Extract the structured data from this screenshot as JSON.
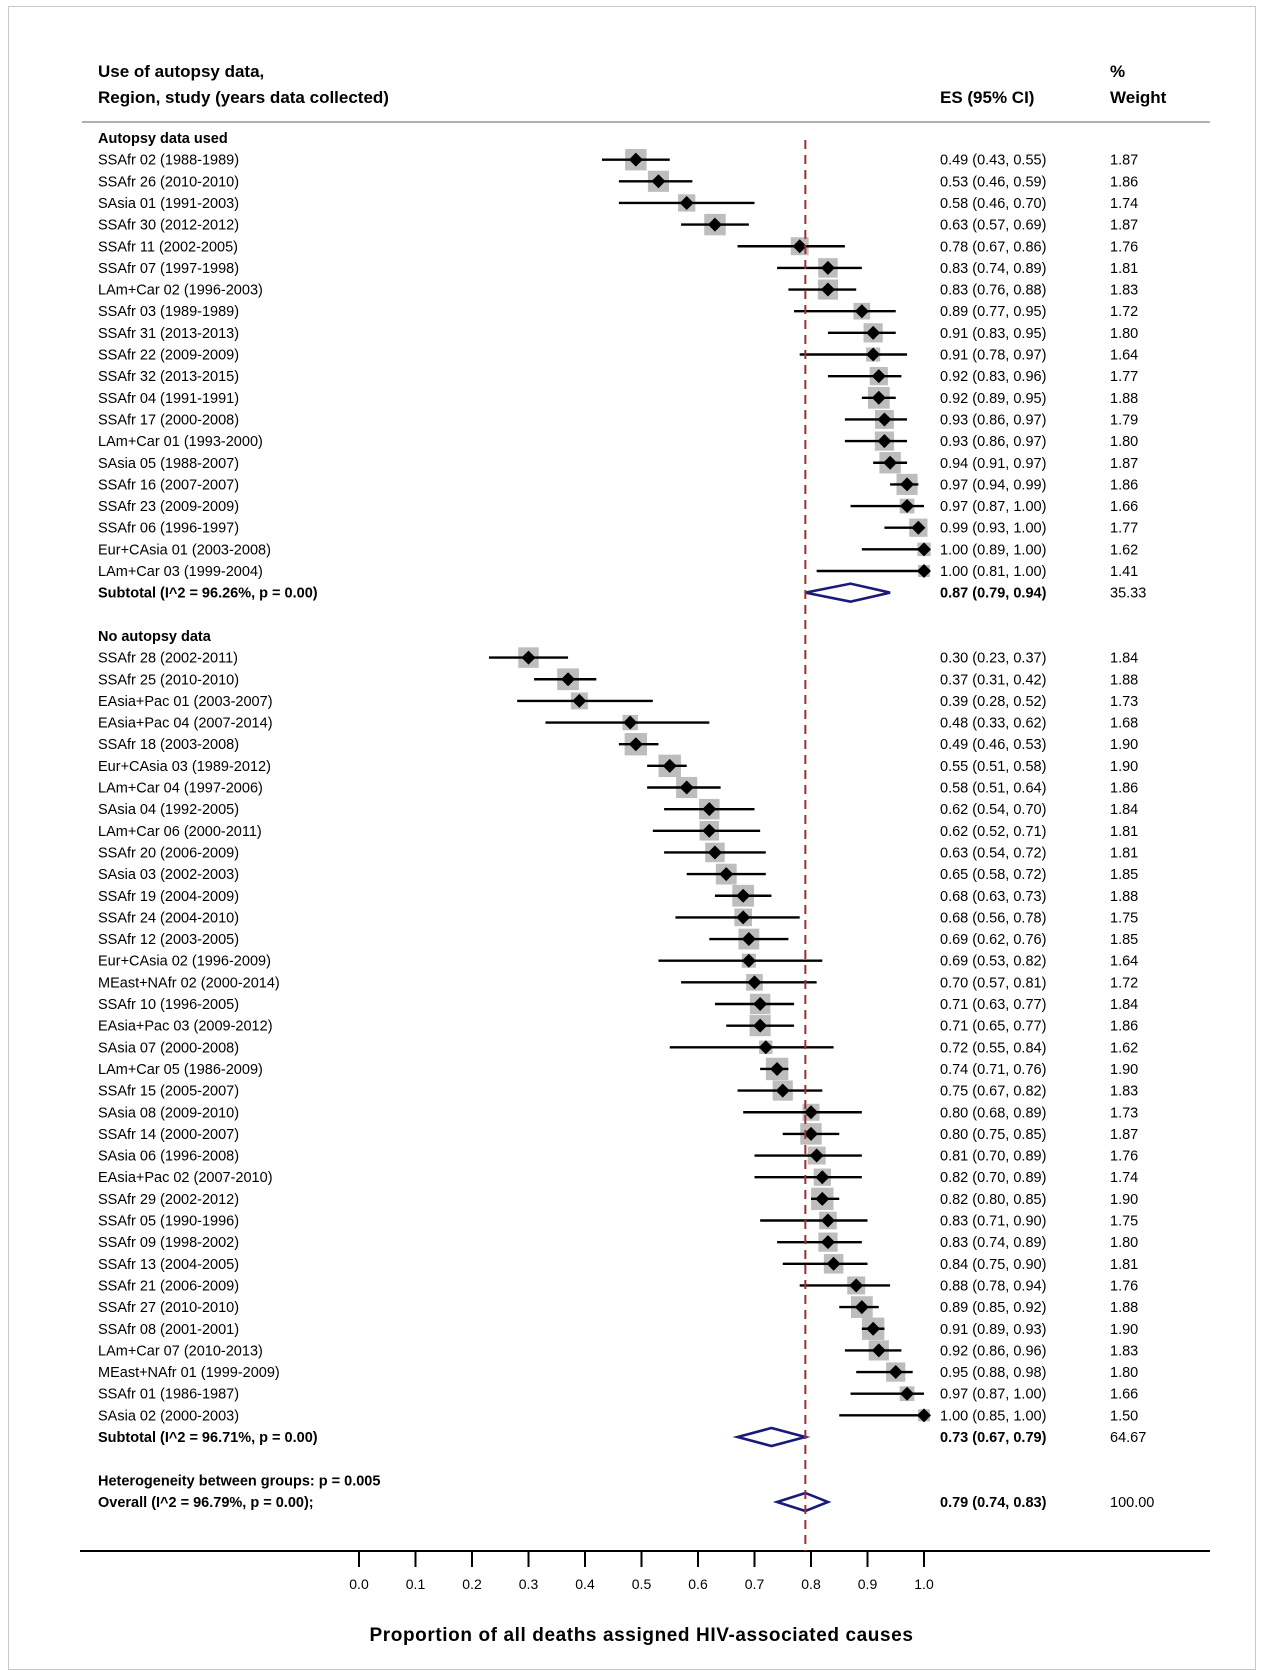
{
  "chart_data": {
    "type": "forest",
    "header": {
      "col1_line1": "Use of autopsy data,",
      "col1_line2": "Region, study (years data collected)",
      "col_es": "ES (95% CI)",
      "col_w_line1": "%",
      "col_w_line2": "Weight"
    },
    "xlabel": "Proportion of all deaths assigned HIV-associated causes",
    "xlim": [
      0.0,
      1.0
    ],
    "xticks": [
      "0.0",
      "0.1",
      "0.2",
      "0.3",
      "0.4",
      "0.5",
      "0.6",
      "0.7",
      "0.8",
      "0.9",
      "1.0"
    ],
    "reference_line": 0.79,
    "groups": [
      {
        "name": "Autopsy data used",
        "studies": [
          {
            "label": "SSAfr 02 (1988-1989)",
            "es": 0.49,
            "lo": 0.43,
            "hi": 0.55,
            "es_text": "0.49 (0.43, 0.55)",
            "weight": "1.87"
          },
          {
            "label": "SSAfr 26 (2010-2010)",
            "es": 0.53,
            "lo": 0.46,
            "hi": 0.59,
            "es_text": "0.53 (0.46, 0.59)",
            "weight": "1.86"
          },
          {
            "label": "SAsia 01 (1991-2003)",
            "es": 0.58,
            "lo": 0.46,
            "hi": 0.7,
            "es_text": "0.58 (0.46, 0.70)",
            "weight": "1.74"
          },
          {
            "label": "SSAfr 30 (2012-2012)",
            "es": 0.63,
            "lo": 0.57,
            "hi": 0.69,
            "es_text": "0.63 (0.57, 0.69)",
            "weight": "1.87"
          },
          {
            "label": "SSAfr 11 (2002-2005)",
            "es": 0.78,
            "lo": 0.67,
            "hi": 0.86,
            "es_text": "0.78 (0.67, 0.86)",
            "weight": "1.76"
          },
          {
            "label": "SSAfr 07 (1997-1998)",
            "es": 0.83,
            "lo": 0.74,
            "hi": 0.89,
            "es_text": "0.83 (0.74, 0.89)",
            "weight": "1.81"
          },
          {
            "label": "LAm+Car 02 (1996-2003)",
            "es": 0.83,
            "lo": 0.76,
            "hi": 0.88,
            "es_text": "0.83 (0.76, 0.88)",
            "weight": "1.83"
          },
          {
            "label": "SSAfr 03 (1989-1989)",
            "es": 0.89,
            "lo": 0.77,
            "hi": 0.95,
            "es_text": "0.89 (0.77, 0.95)",
            "weight": "1.72"
          },
          {
            "label": "SSAfr 31 (2013-2013)",
            "es": 0.91,
            "lo": 0.83,
            "hi": 0.95,
            "es_text": "0.91 (0.83, 0.95)",
            "weight": "1.80"
          },
          {
            "label": "SSAfr 22 (2009-2009)",
            "es": 0.91,
            "lo": 0.78,
            "hi": 0.97,
            "es_text": "0.91 (0.78, 0.97)",
            "weight": "1.64"
          },
          {
            "label": "SSAfr 32 (2013-2015)",
            "es": 0.92,
            "lo": 0.83,
            "hi": 0.96,
            "es_text": "0.92 (0.83, 0.96)",
            "weight": "1.77"
          },
          {
            "label": "SSAfr 04 (1991-1991)",
            "es": 0.92,
            "lo": 0.89,
            "hi": 0.95,
            "es_text": "0.92 (0.89, 0.95)",
            "weight": "1.88"
          },
          {
            "label": "SSAfr 17 (2000-2008)",
            "es": 0.93,
            "lo": 0.86,
            "hi": 0.97,
            "es_text": "0.93 (0.86, 0.97)",
            "weight": "1.79"
          },
          {
            "label": "LAm+Car 01 (1993-2000)",
            "es": 0.93,
            "lo": 0.86,
            "hi": 0.97,
            "es_text": "0.93 (0.86, 0.97)",
            "weight": "1.80"
          },
          {
            "label": "SAsia 05 (1988-2007)",
            "es": 0.94,
            "lo": 0.91,
            "hi": 0.97,
            "es_text": "0.94 (0.91, 0.97)",
            "weight": "1.87"
          },
          {
            "label": "SSAfr 16 (2007-2007)",
            "es": 0.97,
            "lo": 0.94,
            "hi": 0.99,
            "es_text": "0.97 (0.94, 0.99)",
            "weight": "1.86"
          },
          {
            "label": "SSAfr 23 (2009-2009)",
            "es": 0.97,
            "lo": 0.87,
            "hi": 1.0,
            "es_text": "0.97 (0.87, 1.00)",
            "weight": "1.66"
          },
          {
            "label": "SSAfr 06 (1996-1997)",
            "es": 0.99,
            "lo": 0.93,
            "hi": 1.0,
            "es_text": "0.99 (0.93, 1.00)",
            "weight": "1.77"
          },
          {
            "label": "Eur+CAsia 01 (2003-2008)",
            "es": 1.0,
            "lo": 0.89,
            "hi": 1.0,
            "es_text": "1.00 (0.89, 1.00)",
            "weight": "1.62"
          },
          {
            "label": "LAm+Car 03 (1999-2004)",
            "es": 1.0,
            "lo": 0.81,
            "hi": 1.0,
            "es_text": "1.00 (0.81, 1.00)",
            "weight": "1.41"
          }
        ],
        "subtotal": {
          "label": "Subtotal  (I^2 = 96.26%, p = 0.00)",
          "es": 0.87,
          "lo": 0.79,
          "hi": 0.94,
          "es_text": "0.87 (0.79, 0.94)",
          "weight": "35.33"
        }
      },
      {
        "name": "No autopsy data",
        "studies": [
          {
            "label": "SSAfr 28 (2002-2011)",
            "es": 0.3,
            "lo": 0.23,
            "hi": 0.37,
            "es_text": "0.30 (0.23, 0.37)",
            "weight": "1.84"
          },
          {
            "label": "SSAfr 25 (2010-2010)",
            "es": 0.37,
            "lo": 0.31,
            "hi": 0.42,
            "es_text": "0.37 (0.31, 0.42)",
            "weight": "1.88"
          },
          {
            "label": "EAsia+Pac 01 (2003-2007)",
            "es": 0.39,
            "lo": 0.28,
            "hi": 0.52,
            "es_text": "0.39 (0.28, 0.52)",
            "weight": "1.73"
          },
          {
            "label": "EAsia+Pac 04 (2007-2014)",
            "es": 0.48,
            "lo": 0.33,
            "hi": 0.62,
            "es_text": "0.48 (0.33, 0.62)",
            "weight": "1.68"
          },
          {
            "label": "SSAfr 18 (2003-2008)",
            "es": 0.49,
            "lo": 0.46,
            "hi": 0.53,
            "es_text": "0.49 (0.46, 0.53)",
            "weight": "1.90"
          },
          {
            "label": "Eur+CAsia 03 (1989-2012)",
            "es": 0.55,
            "lo": 0.51,
            "hi": 0.58,
            "es_text": "0.55 (0.51, 0.58)",
            "weight": "1.90"
          },
          {
            "label": "LAm+Car 04 (1997-2006)",
            "es": 0.58,
            "lo": 0.51,
            "hi": 0.64,
            "es_text": "0.58 (0.51, 0.64)",
            "weight": "1.86"
          },
          {
            "label": "SAsia 04 (1992-2005)",
            "es": 0.62,
            "lo": 0.54,
            "hi": 0.7,
            "es_text": "0.62 (0.54, 0.70)",
            "weight": "1.84"
          },
          {
            "label": "LAm+Car 06 (2000-2011)",
            "es": 0.62,
            "lo": 0.52,
            "hi": 0.71,
            "es_text": "0.62 (0.52, 0.71)",
            "weight": "1.81"
          },
          {
            "label": "SSAfr 20 (2006-2009)",
            "es": 0.63,
            "lo": 0.54,
            "hi": 0.72,
            "es_text": "0.63 (0.54, 0.72)",
            "weight": "1.81"
          },
          {
            "label": "SAsia 03 (2002-2003)",
            "es": 0.65,
            "lo": 0.58,
            "hi": 0.72,
            "es_text": "0.65 (0.58, 0.72)",
            "weight": "1.85"
          },
          {
            "label": "SSAfr 19 (2004-2009)",
            "es": 0.68,
            "lo": 0.63,
            "hi": 0.73,
            "es_text": "0.68 (0.63, 0.73)",
            "weight": "1.88"
          },
          {
            "label": "SSAfr 24 (2004-2010)",
            "es": 0.68,
            "lo": 0.56,
            "hi": 0.78,
            "es_text": "0.68 (0.56, 0.78)",
            "weight": "1.75"
          },
          {
            "label": "SSAfr 12 (2003-2005)",
            "es": 0.69,
            "lo": 0.62,
            "hi": 0.76,
            "es_text": "0.69 (0.62, 0.76)",
            "weight": "1.85"
          },
          {
            "label": "Eur+CAsia 02 (1996-2009)",
            "es": 0.69,
            "lo": 0.53,
            "hi": 0.82,
            "es_text": "0.69 (0.53, 0.82)",
            "weight": "1.64"
          },
          {
            "label": "MEast+NAfr 02 (2000-2014)",
            "es": 0.7,
            "lo": 0.57,
            "hi": 0.81,
            "es_text": "0.70 (0.57, 0.81)",
            "weight": "1.72"
          },
          {
            "label": "SSAfr 10 (1996-2005)",
            "es": 0.71,
            "lo": 0.63,
            "hi": 0.77,
            "es_text": "0.71 (0.63, 0.77)",
            "weight": "1.84"
          },
          {
            "label": "EAsia+Pac 03 (2009-2012)",
            "es": 0.71,
            "lo": 0.65,
            "hi": 0.77,
            "es_text": "0.71 (0.65, 0.77)",
            "weight": "1.86"
          },
          {
            "label": "SAsia 07 (2000-2008)",
            "es": 0.72,
            "lo": 0.55,
            "hi": 0.84,
            "es_text": "0.72 (0.55, 0.84)",
            "weight": "1.62"
          },
          {
            "label": "LAm+Car 05 (1986-2009)",
            "es": 0.74,
            "lo": 0.71,
            "hi": 0.76,
            "es_text": "0.74 (0.71, 0.76)",
            "weight": "1.90"
          },
          {
            "label": "SSAfr 15 (2005-2007)",
            "es": 0.75,
            "lo": 0.67,
            "hi": 0.82,
            "es_text": "0.75 (0.67, 0.82)",
            "weight": "1.83"
          },
          {
            "label": "SAsia 08 (2009-2010)",
            "es": 0.8,
            "lo": 0.68,
            "hi": 0.89,
            "es_text": "0.80 (0.68, 0.89)",
            "weight": "1.73"
          },
          {
            "label": "SSAfr 14 (2000-2007)",
            "es": 0.8,
            "lo": 0.75,
            "hi": 0.85,
            "es_text": "0.80 (0.75, 0.85)",
            "weight": "1.87"
          },
          {
            "label": "SAsia 06 (1996-2008)",
            "es": 0.81,
            "lo": 0.7,
            "hi": 0.89,
            "es_text": "0.81 (0.70, 0.89)",
            "weight": "1.76"
          },
          {
            "label": "EAsia+Pac 02 (2007-2010)",
            "es": 0.82,
            "lo": 0.7,
            "hi": 0.89,
            "es_text": "0.82 (0.70, 0.89)",
            "weight": "1.74"
          },
          {
            "label": "SSAfr 29 (2002-2012)",
            "es": 0.82,
            "lo": 0.8,
            "hi": 0.85,
            "es_text": "0.82 (0.80, 0.85)",
            "weight": "1.90"
          },
          {
            "label": "SSAfr 05 (1990-1996)",
            "es": 0.83,
            "lo": 0.71,
            "hi": 0.9,
            "es_text": "0.83 (0.71, 0.90)",
            "weight": "1.75"
          },
          {
            "label": "SSAfr 09 (1998-2002)",
            "es": 0.83,
            "lo": 0.74,
            "hi": 0.89,
            "es_text": "0.83 (0.74, 0.89)",
            "weight": "1.80"
          },
          {
            "label": "SSAfr 13 (2004-2005)",
            "es": 0.84,
            "lo": 0.75,
            "hi": 0.9,
            "es_text": "0.84 (0.75, 0.90)",
            "weight": "1.81"
          },
          {
            "label": "SSAfr 21 (2006-2009)",
            "es": 0.88,
            "lo": 0.78,
            "hi": 0.94,
            "es_text": "0.88 (0.78, 0.94)",
            "weight": "1.76"
          },
          {
            "label": "SSAfr 27 (2010-2010)",
            "es": 0.89,
            "lo": 0.85,
            "hi": 0.92,
            "es_text": "0.89 (0.85, 0.92)",
            "weight": "1.88"
          },
          {
            "label": "SSAfr 08 (2001-2001)",
            "es": 0.91,
            "lo": 0.89,
            "hi": 0.93,
            "es_text": "0.91 (0.89, 0.93)",
            "weight": "1.90"
          },
          {
            "label": "LAm+Car 07 (2010-2013)",
            "es": 0.92,
            "lo": 0.86,
            "hi": 0.96,
            "es_text": "0.92 (0.86, 0.96)",
            "weight": "1.83"
          },
          {
            "label": "MEast+NAfr 01 (1999-2009)",
            "es": 0.95,
            "lo": 0.88,
            "hi": 0.98,
            "es_text": "0.95 (0.88, 0.98)",
            "weight": "1.80"
          },
          {
            "label": "SSAfr 01 (1986-1987)",
            "es": 0.97,
            "lo": 0.87,
            "hi": 1.0,
            "es_text": "0.97 (0.87, 1.00)",
            "weight": "1.66"
          },
          {
            "label": "SAsia 02 (2000-2003)",
            "es": 1.0,
            "lo": 0.85,
            "hi": 1.0,
            "es_text": "1.00 (0.85, 1.00)",
            "weight": "1.50"
          }
        ],
        "subtotal": {
          "label": "Subtotal  (I^2 = 96.71%, p = 0.00)",
          "es": 0.73,
          "lo": 0.67,
          "hi": 0.79,
          "es_text": "0.73 (0.67, 0.79)",
          "weight": "64.67"
        }
      }
    ],
    "heterogeneity_text": "Heterogeneity between groups: p = 0.005",
    "overall": {
      "label": "Overall  (I^2 = 96.79%, p = 0.00);",
      "es": 0.79,
      "lo": 0.74,
      "hi": 0.83,
      "es_text": "0.79 (0.74, 0.83)",
      "weight": "100.00"
    },
    "colors": {
      "diamond_outline": "#1a1a7a",
      "reference_line": "#9b3030",
      "weight_box": "#bdbdbd",
      "ci_line": "#000000",
      "separator": "#b0b0b0"
    }
  }
}
